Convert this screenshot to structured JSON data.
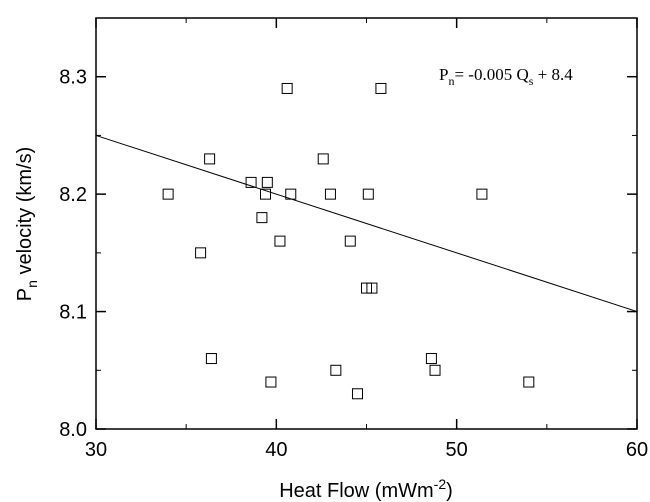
{
  "chart_data": {
    "type": "scatter",
    "title": "",
    "xlabel": {
      "base": "Heat Flow (mWm",
      "sup": "-2",
      "tail": ")"
    },
    "ylabel": {
      "base": "P",
      "sub": "n",
      "tail": " velocity (km/s)"
    },
    "xlim": [
      30,
      60
    ],
    "ylim": [
      8.0,
      8.35
    ],
    "xticks": [
      30,
      40,
      50,
      60
    ],
    "yticks": [
      8.0,
      8.1,
      8.2,
      8.3
    ],
    "x_tick_labels": [
      "30",
      "40",
      "50",
      "60"
    ],
    "y_tick_labels": [
      "8.0",
      "8.1",
      "8.2",
      "8.3"
    ],
    "grid": false,
    "series": [
      {
        "marker": "open-square",
        "points": [
          {
            "x": 40.6,
            "y": 8.29
          },
          {
            "x": 45.8,
            "y": 8.29
          },
          {
            "x": 36.3,
            "y": 8.23
          },
          {
            "x": 42.6,
            "y": 8.23
          },
          {
            "x": 38.6,
            "y": 8.21
          },
          {
            "x": 39.5,
            "y": 8.21
          },
          {
            "x": 34.0,
            "y": 8.2
          },
          {
            "x": 39.4,
            "y": 8.2
          },
          {
            "x": 40.8,
            "y": 8.2
          },
          {
            "x": 43.0,
            "y": 8.2
          },
          {
            "x": 45.1,
            "y": 8.2
          },
          {
            "x": 51.4,
            "y": 8.2
          },
          {
            "x": 39.2,
            "y": 8.18
          },
          {
            "x": 40.2,
            "y": 8.16
          },
          {
            "x": 44.1,
            "y": 8.16
          },
          {
            "x": 35.8,
            "y": 8.15
          },
          {
            "x": 45.0,
            "y": 8.12
          },
          {
            "x": 45.3,
            "y": 8.12
          },
          {
            "x": 36.4,
            "y": 8.06
          },
          {
            "x": 48.6,
            "y": 8.06
          },
          {
            "x": 43.3,
            "y": 8.05
          },
          {
            "x": 48.8,
            "y": 8.05
          },
          {
            "x": 39.7,
            "y": 8.04
          },
          {
            "x": 54.0,
            "y": 8.04
          },
          {
            "x": 44.5,
            "y": 8.03
          }
        ]
      }
    ],
    "fit_line": {
      "slope": -0.005,
      "intercept": 8.4,
      "x_range": [
        30,
        60
      ]
    },
    "annotation": {
      "p": "P",
      "p_sub": "n",
      "mid": "= -0.005 Q",
      "q_sub": "s",
      "tail": " + 8.4"
    }
  }
}
